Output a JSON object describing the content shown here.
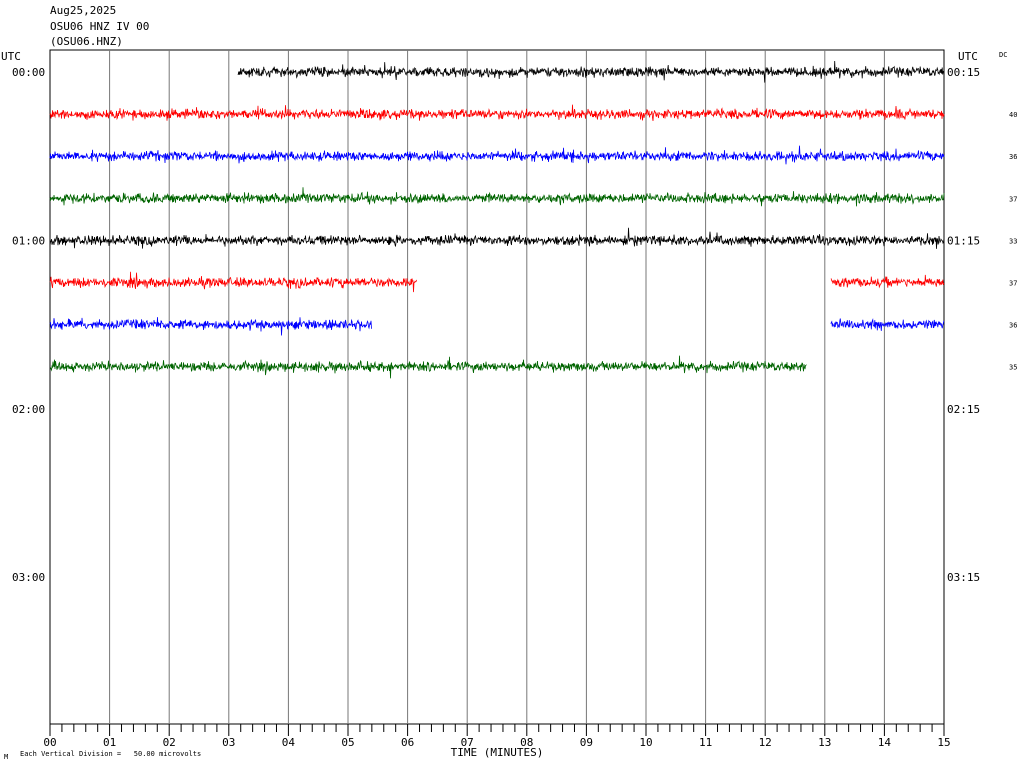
{
  "header": {
    "date": "Aug25,2025",
    "channel": "OSU06 HNZ IV 00",
    "station": "(OSU06.HNZ)"
  },
  "footer": {
    "scale_note": "Each Vertical Division =   50.00 microvolts",
    "corner_mark": "M"
  },
  "chart_data": {
    "type": "line",
    "title": "OSU06 HNZ IV 00",
    "xlabel": "TIME (MINUTES)",
    "ylabel": "UTC",
    "right_label": "UTC",
    "dc_label": "DC",
    "x_ticks": [
      "00",
      "01",
      "02",
      "03",
      "04",
      "05",
      "06",
      "07",
      "08",
      "09",
      "10",
      "11",
      "12",
      "13",
      "14",
      "15"
    ],
    "xlim": [
      0,
      15
    ],
    "grid": true,
    "left_time_labels": [
      {
        "row": 0,
        "label": "00:00"
      },
      {
        "row": 4,
        "label": "01:00"
      },
      {
        "row": 8,
        "label": "02:00"
      },
      {
        "row": 12,
        "label": "03:00"
      }
    ],
    "right_time_labels": [
      {
        "row": 0,
        "label": "00:15"
      },
      {
        "row": 4,
        "label": "01:15"
      },
      {
        "row": 8,
        "label": "02:15"
      },
      {
        "row": 12,
        "label": "03:15"
      }
    ],
    "traces": [
      {
        "row": 0,
        "color": "#000000",
        "dc": "",
        "segments": [
          [
            3.15,
            15.0
          ]
        ]
      },
      {
        "row": 1,
        "color": "#ff0000",
        "dc": "40",
        "segments": [
          [
            0.0,
            15.0
          ]
        ]
      },
      {
        "row": 2,
        "color": "#0000ff",
        "dc": "36",
        "segments": [
          [
            0.0,
            15.0
          ]
        ]
      },
      {
        "row": 3,
        "color": "#006400",
        "dc": "37",
        "segments": [
          [
            0.0,
            15.0
          ]
        ]
      },
      {
        "row": 4,
        "color": "#000000",
        "dc": "33",
        "segments": [
          [
            0.0,
            15.0
          ]
        ]
      },
      {
        "row": 5,
        "color": "#ff0000",
        "dc": "37",
        "segments": [
          [
            0.0,
            6.15
          ],
          [
            13.1,
            15.0
          ]
        ]
      },
      {
        "row": 6,
        "color": "#0000ff",
        "dc": "36",
        "segments": [
          [
            0.0,
            5.4
          ],
          [
            13.1,
            15.0
          ]
        ]
      },
      {
        "row": 7,
        "color": "#006400",
        "dc": "35",
        "segments": [
          [
            0.0,
            12.7
          ]
        ]
      }
    ]
  }
}
